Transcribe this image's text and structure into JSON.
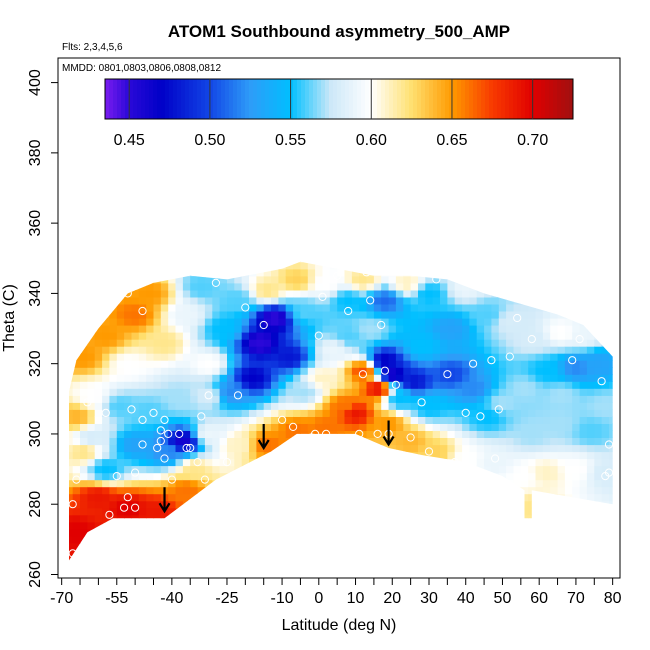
{
  "chart_data": {
    "type": "heatmap",
    "title": "ATOM1 Southbound asymmetry_500_AMP",
    "annotations": [
      "Flts: 2,3,4,5,6",
      "MMDD: 0801,0803,0806,0808,0812"
    ],
    "xlabel": "Latitude (deg N)",
    "ylabel": "Theta (C)",
    "xlim": [
      -71,
      82
    ],
    "ylim": [
      259,
      407
    ],
    "xticks": [
      -70,
      -55,
      -40,
      -25,
      -10,
      0,
      10,
      20,
      30,
      40,
      50,
      60,
      70,
      80
    ],
    "yticks": [
      260,
      280,
      300,
      320,
      340,
      360,
      380,
      400
    ],
    "colorbar": {
      "range": [
        0.435,
        0.725
      ],
      "ticks": [
        0.45,
        0.5,
        0.55,
        0.6,
        0.65,
        0.7
      ],
      "tick_labels": [
        "0.45",
        "0.50",
        "0.55",
        "0.60",
        "0.65",
        "0.70"
      ],
      "stops": [
        {
          "v": 0.435,
          "c": "#7a1cf0"
        },
        {
          "v": 0.45,
          "c": "#2a08d8"
        },
        {
          "v": 0.47,
          "c": "#0000c8"
        },
        {
          "v": 0.5,
          "c": "#1246e6"
        },
        {
          "v": 0.525,
          "c": "#2e9cf8"
        },
        {
          "v": 0.55,
          "c": "#00bfff"
        },
        {
          "v": 0.575,
          "c": "#cde8f8"
        },
        {
          "v": 0.6,
          "c": "#ffffff"
        },
        {
          "v": 0.625,
          "c": "#ffe070"
        },
        {
          "v": 0.65,
          "c": "#ff9a00"
        },
        {
          "v": 0.675,
          "c": "#f83a00"
        },
        {
          "v": 0.7,
          "c": "#e00000"
        },
        {
          "v": 0.725,
          "c": "#a01010"
        }
      ]
    },
    "domain": {
      "bottom": [
        [
          -68,
          264
        ],
        [
          -63,
          272
        ],
        [
          -56,
          276
        ],
        [
          -42,
          276
        ],
        [
          -28,
          287
        ],
        [
          -13,
          295
        ],
        [
          -6,
          300
        ],
        [
          10,
          300
        ],
        [
          19,
          296
        ],
        [
          28,
          294
        ],
        [
          40,
          292
        ],
        [
          50,
          288
        ],
        [
          56,
          284
        ],
        [
          56,
          276
        ],
        [
          58,
          276
        ],
        [
          58,
          284
        ],
        [
          80,
          280
        ]
      ],
      "top": [
        [
          -68,
          312
        ],
        [
          -66,
          321
        ],
        [
          -60,
          330
        ],
        [
          -52,
          340
        ],
        [
          -45,
          343
        ],
        [
          -35,
          345
        ],
        [
          -25,
          344
        ],
        [
          -10,
          347
        ],
        [
          -5,
          349
        ],
        [
          5,
          347
        ],
        [
          15,
          345
        ],
        [
          25,
          345
        ],
        [
          35,
          344
        ],
        [
          45,
          340
        ],
        [
          55,
          337
        ],
        [
          65,
          334
        ],
        [
          72,
          331
        ],
        [
          80,
          322
        ],
        [
          80,
          280
        ]
      ]
    },
    "grid_values": [
      {
        "x": -66,
        "y": 272,
        "v": 0.7
      },
      {
        "x": -60,
        "y": 282,
        "v": 0.69
      },
      {
        "x": -52,
        "y": 279,
        "v": 0.7
      },
      {
        "x": -44,
        "y": 278,
        "v": 0.69
      },
      {
        "x": -36,
        "y": 284,
        "v": 0.66
      },
      {
        "x": -64,
        "y": 295,
        "v": 0.62
      },
      {
        "x": -58,
        "y": 290,
        "v": 0.55
      },
      {
        "x": -50,
        "y": 297,
        "v": 0.53
      },
      {
        "x": -41,
        "y": 295,
        "v": 0.52
      },
      {
        "x": -37,
        "y": 298,
        "v": 0.46
      },
      {
        "x": -34,
        "y": 290,
        "v": 0.62
      },
      {
        "x": -30,
        "y": 300,
        "v": 0.59
      },
      {
        "x": -22,
        "y": 297,
        "v": 0.61
      },
      {
        "x": -14,
        "y": 297,
        "v": 0.66
      },
      {
        "x": -6,
        "y": 301,
        "v": 0.66
      },
      {
        "x": 2,
        "y": 302,
        "v": 0.66
      },
      {
        "x": 10,
        "y": 306,
        "v": 0.69
      },
      {
        "x": 16,
        "y": 313,
        "v": 0.69
      },
      {
        "x": 19,
        "y": 303,
        "v": 0.65
      },
      {
        "x": 25,
        "y": 298,
        "v": 0.64
      },
      {
        "x": 32,
        "y": 295,
        "v": 0.63
      },
      {
        "x": 40,
        "y": 293,
        "v": 0.6
      },
      {
        "x": 48,
        "y": 292,
        "v": 0.59
      },
      {
        "x": 56,
        "y": 288,
        "v": 0.6
      },
      {
        "x": 62,
        "y": 289,
        "v": 0.61
      },
      {
        "x": 70,
        "y": 290,
        "v": 0.6
      },
      {
        "x": 78,
        "y": 289,
        "v": 0.58
      },
      {
        "x": 58,
        "y": 279,
        "v": 0.62
      },
      {
        "x": -66,
        "y": 305,
        "v": 0.64
      },
      {
        "x": -62,
        "y": 311,
        "v": 0.6
      },
      {
        "x": -54,
        "y": 308,
        "v": 0.56
      },
      {
        "x": -46,
        "y": 306,
        "v": 0.56
      },
      {
        "x": -38,
        "y": 310,
        "v": 0.57
      },
      {
        "x": -30,
        "y": 311,
        "v": 0.58
      },
      {
        "x": -24,
        "y": 312,
        "v": 0.52
      },
      {
        "x": -18,
        "y": 316,
        "v": 0.47
      },
      {
        "x": -16,
        "y": 326,
        "v": 0.45
      },
      {
        "x": -12,
        "y": 333,
        "v": 0.45
      },
      {
        "x": -8,
        "y": 322,
        "v": 0.48
      },
      {
        "x": -4,
        "y": 312,
        "v": 0.57
      },
      {
        "x": 1,
        "y": 316,
        "v": 0.61
      },
      {
        "x": 4,
        "y": 324,
        "v": 0.59
      },
      {
        "x": 7,
        "y": 308,
        "v": 0.66
      },
      {
        "x": 12,
        "y": 318,
        "v": 0.67
      },
      {
        "x": 14,
        "y": 330,
        "v": 0.57
      },
      {
        "x": 18,
        "y": 321,
        "v": 0.47
      },
      {
        "x": 20,
        "y": 317,
        "v": 0.46
      },
      {
        "x": 26,
        "y": 315,
        "v": 0.48
      },
      {
        "x": 22,
        "y": 310,
        "v": 0.55
      },
      {
        "x": 30,
        "y": 308,
        "v": 0.55
      },
      {
        "x": 36,
        "y": 317,
        "v": 0.5
      },
      {
        "x": 42,
        "y": 313,
        "v": 0.52
      },
      {
        "x": 46,
        "y": 305,
        "v": 0.55
      },
      {
        "x": 50,
        "y": 309,
        "v": 0.57
      },
      {
        "x": 56,
        "y": 313,
        "v": 0.57
      },
      {
        "x": 62,
        "y": 318,
        "v": 0.55
      },
      {
        "x": 66,
        "y": 311,
        "v": 0.57
      },
      {
        "x": 70,
        "y": 319,
        "v": 0.52
      },
      {
        "x": 76,
        "y": 320,
        "v": 0.53
      },
      {
        "x": 78,
        "y": 308,
        "v": 0.57
      },
      {
        "x": 74,
        "y": 301,
        "v": 0.56
      },
      {
        "x": 66,
        "y": 303,
        "v": 0.57
      },
      {
        "x": 58,
        "y": 300,
        "v": 0.57
      },
      {
        "x": -64,
        "y": 322,
        "v": 0.65
      },
      {
        "x": -58,
        "y": 328,
        "v": 0.65
      },
      {
        "x": -50,
        "y": 334,
        "v": 0.66
      },
      {
        "x": -46,
        "y": 340,
        "v": 0.65
      },
      {
        "x": -52,
        "y": 320,
        "v": 0.6
      },
      {
        "x": -42,
        "y": 326,
        "v": 0.62
      },
      {
        "x": -36,
        "y": 334,
        "v": 0.59
      },
      {
        "x": -32,
        "y": 342,
        "v": 0.56
      },
      {
        "x": -26,
        "y": 330,
        "v": 0.55
      },
      {
        "x": -22,
        "y": 338,
        "v": 0.56
      },
      {
        "x": -14,
        "y": 341,
        "v": 0.62
      },
      {
        "x": -6,
        "y": 344,
        "v": 0.63
      },
      {
        "x": -4,
        "y": 335,
        "v": 0.56
      },
      {
        "x": 2,
        "y": 343,
        "v": 0.6
      },
      {
        "x": 8,
        "y": 338,
        "v": 0.55
      },
      {
        "x": 12,
        "y": 344,
        "v": 0.62
      },
      {
        "x": 18,
        "y": 338,
        "v": 0.51
      },
      {
        "x": 24,
        "y": 343,
        "v": 0.61
      },
      {
        "x": 30,
        "y": 340,
        "v": 0.55
      },
      {
        "x": 36,
        "y": 330,
        "v": 0.53
      },
      {
        "x": 40,
        "y": 342,
        "v": 0.59
      },
      {
        "x": 46,
        "y": 334,
        "v": 0.56
      },
      {
        "x": 52,
        "y": 332,
        "v": 0.58
      },
      {
        "x": 58,
        "y": 327,
        "v": 0.58
      },
      {
        "x": 66,
        "y": 329,
        "v": 0.6
      },
      {
        "x": 72,
        "y": 328,
        "v": 0.59
      },
      {
        "x": 8,
        "y": 328,
        "v": 0.56
      },
      {
        "x": 28,
        "y": 325,
        "v": 0.55
      },
      {
        "x": -30,
        "y": 320,
        "v": 0.6
      },
      {
        "x": -62,
        "y": 299,
        "v": 0.58
      }
    ],
    "observations": [
      [
        -67,
        266
      ],
      [
        -67,
        280
      ],
      [
        -66,
        287
      ],
      [
        -63,
        309
      ],
      [
        -58,
        306
      ],
      [
        -57,
        277
      ],
      [
        -55,
        288
      ],
      [
        -53,
        279
      ],
      [
        -52,
        282
      ],
      [
        -51,
        307
      ],
      [
        -50,
        279
      ],
      [
        -50,
        289
      ],
      [
        -48,
        297
      ],
      [
        -48,
        304
      ],
      [
        -45,
        306
      ],
      [
        -44,
        296
      ],
      [
        -43,
        298
      ],
      [
        -42,
        293
      ],
      [
        -42,
        304
      ],
      [
        -43,
        301
      ],
      [
        -41,
        300
      ],
      [
        -40,
        287
      ],
      [
        -38,
        300
      ],
      [
        -36,
        296
      ],
      [
        -33,
        292
      ],
      [
        -52,
        340
      ],
      [
        -48,
        335
      ],
      [
        -35,
        296
      ],
      [
        -32,
        305
      ],
      [
        -31,
        287
      ],
      [
        -30,
        311
      ],
      [
        -28,
        343
      ],
      [
        -25,
        292
      ],
      [
        -22,
        311
      ],
      [
        -20,
        336
      ],
      [
        -15,
        331
      ],
      [
        -10,
        304
      ],
      [
        -7,
        302
      ],
      [
        -2,
        299
      ],
      [
        -1,
        300
      ],
      [
        0,
        328
      ],
      [
        1,
        339
      ],
      [
        2,
        300
      ],
      [
        5,
        345
      ],
      [
        8,
        335
      ],
      [
        11,
        300
      ],
      [
        12,
        317
      ],
      [
        14,
        338
      ],
      [
        13,
        346
      ],
      [
        16,
        300
      ],
      [
        17,
        331
      ],
      [
        18,
        318
      ],
      [
        19,
        300
      ],
      [
        21,
        314
      ],
      [
        25,
        299
      ],
      [
        28,
        309
      ],
      [
        30,
        295
      ],
      [
        32,
        344
      ],
      [
        35,
        317
      ],
      [
        37,
        292
      ],
      [
        40,
        306
      ],
      [
        42,
        320
      ],
      [
        43,
        344
      ],
      [
        44,
        305
      ],
      [
        47,
        321
      ],
      [
        48,
        293
      ],
      [
        49,
        307
      ],
      [
        52,
        322
      ],
      [
        54,
        333
      ],
      [
        58,
        327
      ],
      [
        69,
        321
      ],
      [
        71,
        327
      ],
      [
        77,
        315
      ],
      [
        78,
        288
      ],
      [
        79,
        297
      ],
      [
        79,
        289
      ]
    ],
    "arrows": [
      [
        -42,
        278
      ],
      [
        -15,
        296
      ],
      [
        19,
        297
      ]
    ]
  }
}
